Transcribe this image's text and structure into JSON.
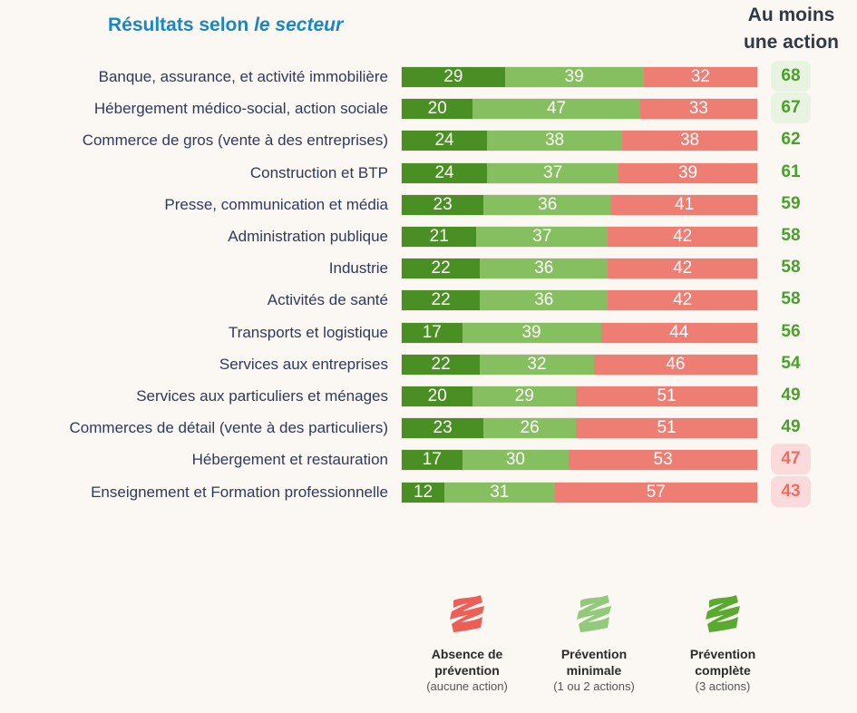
{
  "title": {
    "main": "Résultats selon ",
    "italic": "le secteur"
  },
  "right_header": {
    "line1": "Au moins",
    "line2": "une action"
  },
  "colors": {
    "complete": "#4a8f23",
    "minimal": "#86bf60",
    "absence": "#ee7e74",
    "title": "#1a86c4",
    "total_good": "#4aa02c",
    "total_bad": "#ee6d60"
  },
  "chart_data": {
    "type": "bar",
    "orientation": "horizontal",
    "stacked": true,
    "title": "Résultats selon le secteur",
    "xlabel": "",
    "ylabel": "",
    "xlim": [
      0,
      100
    ],
    "grid": false,
    "legend_position": "bottom",
    "categories": [
      "Banque, assurance, et activité immobilière",
      "Hébergement médico-social, action sociale",
      "Commerce de gros (vente à des entreprises)",
      "Construction et BTP",
      "Presse, communication et média",
      "Administration publique",
      "Industrie",
      "Activités de santé",
      "Transports et logistique",
      "Services aux entreprises",
      "Services aux particuliers et ménages",
      "Commerces de détail (vente à des particuliers)",
      "Hébergement et restauration",
      "Enseignement et Formation professionnelle"
    ],
    "series": [
      {
        "name": "Prévention complète",
        "key": "complete",
        "values": [
          29,
          20,
          24,
          24,
          23,
          21,
          22,
          22,
          17,
          22,
          20,
          23,
          17,
          12
        ]
      },
      {
        "name": "Prévention minimale",
        "key": "minimal",
        "values": [
          39,
          47,
          38,
          37,
          36,
          37,
          36,
          36,
          39,
          32,
          29,
          26,
          30,
          31
        ]
      },
      {
        "name": "Absence de prévention",
        "key": "absence",
        "values": [
          32,
          33,
          38,
          39,
          41,
          42,
          42,
          42,
          44,
          46,
          51,
          51,
          53,
          57
        ]
      }
    ],
    "totals_label": "Au moins une action",
    "totals": [
      68,
      67,
      62,
      61,
      59,
      58,
      58,
      58,
      56,
      54,
      49,
      49,
      47,
      43
    ],
    "totals_status": [
      "good-hl",
      "good-hl",
      "good",
      "good",
      "good",
      "good",
      "good",
      "good",
      "good",
      "good",
      "good",
      "good",
      "bad",
      "bad"
    ]
  },
  "legend": [
    {
      "key": "absence",
      "icon": "red-scribble-icon",
      "title1": "Absence de",
      "title2": "prévention",
      "sub": "(aucune action)",
      "color": "#ec5f57"
    },
    {
      "key": "minimal",
      "icon": "light-green-scribble-icon",
      "title1": "Prévention",
      "title2": "minimale",
      "sub": "(1 ou 2 actions)",
      "color": "#93c97a"
    },
    {
      "key": "complete",
      "icon": "green-scribble-icon",
      "title1": "Prévention",
      "title2": "complète",
      "sub": "(3 actions)",
      "color": "#5aaa32"
    }
  ]
}
